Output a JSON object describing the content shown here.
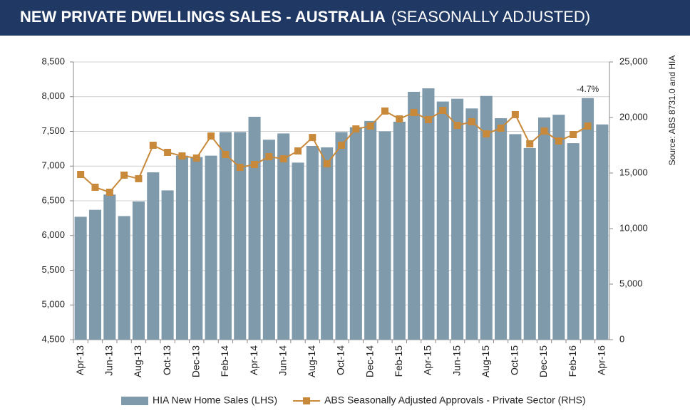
{
  "chart_data": {
    "type": "bar-line",
    "title": "NEW PRIVATE DWELLINGS SALES -  AUSTRALIA",
    "subtitle": "(SEASONALLY ADJUSTED)",
    "source": "Source: ABS 8731.0 and HIA",
    "annotation": "-4.7%",
    "categories": [
      "Apr-13",
      null,
      "Jun-13",
      null,
      "Aug-13",
      null,
      "Oct-13",
      null,
      "Dec-13",
      null,
      "Feb-14",
      null,
      "Apr-14",
      null,
      "Jun-14",
      null,
      "Aug-14",
      null,
      "Oct-14",
      null,
      "Dec-14",
      null,
      "Feb-15",
      null,
      "Apr-15",
      null,
      "Jun-15",
      null,
      "Aug-15",
      null,
      "Oct-15",
      null,
      "Dec-15",
      null,
      "Feb-16",
      null,
      "Apr-16"
    ],
    "series": [
      {
        "name": "HIA New Home Sales (LHS)",
        "color": "#7f9aab",
        "kind": "bar",
        "axis": "y",
        "values": [
          6270,
          6370,
          6590,
          6280,
          6490,
          6910,
          6650,
          7150,
          7130,
          7150,
          7490,
          7490,
          7710,
          7380,
          7470,
          7050,
          7290,
          7270,
          7490,
          7560,
          7650,
          7500,
          7640,
          8070,
          8120,
          7930,
          7970,
          7830,
          8010,
          7690,
          7460,
          7260,
          7700,
          7740,
          7330,
          7980,
          7600
        ]
      },
      {
        "name": "ABS Seasonally Adjusted Approvals - Private Sector (RHS)",
        "color": "#c8893a",
        "kind": "line",
        "axis": "y2",
        "values": [
          14870,
          13720,
          13270,
          14810,
          14490,
          17500,
          16860,
          16540,
          16350,
          18330,
          16670,
          15510,
          15770,
          16470,
          16280,
          16990,
          18200,
          15830,
          17500,
          18970,
          19230,
          20580,
          19870,
          20450,
          19810,
          20640,
          19290,
          19620,
          18530,
          19040,
          20260,
          17630,
          18780,
          17880,
          18460,
          19230,
          null
        ]
      }
    ],
    "ylim": [
      4500,
      8500
    ],
    "yticks": [
      {
        "value": 4500,
        "label": "4,500"
      },
      {
        "value": 5000,
        "label": "5,000"
      },
      {
        "value": 5500,
        "label": "5,500"
      },
      {
        "value": 6000,
        "label": "6,000"
      },
      {
        "value": 6500,
        "label": "6,500"
      },
      {
        "value": 7000,
        "label": "7,000"
      },
      {
        "value": 7500,
        "label": "7,500"
      },
      {
        "value": 8000,
        "label": "8,000"
      },
      {
        "value": 8500,
        "label": "8,500"
      }
    ],
    "y2lim": [
      0,
      25000
    ],
    "y2ticks": [
      0,
      {
        "value": 5000,
        "label": "5,000"
      },
      {
        "value": 10000,
        "label": "10,000"
      },
      {
        "value": 15000,
        "label": "15,000"
      },
      {
        "value": 20000,
        "label": "20,000"
      },
      {
        "value": 25000,
        "label": "25,000"
      }
    ],
    "grid": true
  }
}
